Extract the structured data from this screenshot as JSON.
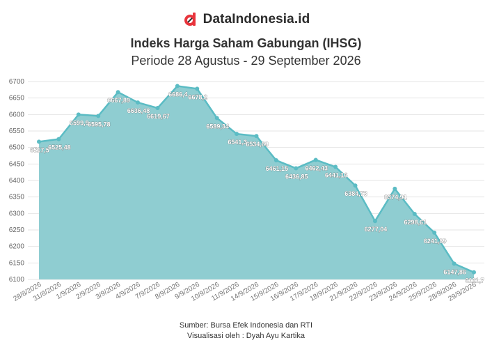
{
  "brand": {
    "name": "DataIndonesia.id",
    "logo_icon": "data-indonesia-logo-icon",
    "accent": "#e8343c"
  },
  "chart_data": {
    "type": "area",
    "title": "Indeks Harga Saham Gabungan (IHSG)",
    "subtitle": "Periode 28 Agustus - 29 September 2026",
    "categories": [
      "28/8/2026",
      "31/8/2026",
      "1/9/2026",
      "2/9/2026",
      "3/9/2026",
      "4/9/2026",
      "7/9/2026",
      "8/9/2026",
      "9/9/2026",
      "10/9/2026",
      "11/9/2026",
      "14/9/2026",
      "15/9/2026",
      "16/9/2026",
      "17/9/2026",
      "18/9/2026",
      "21/9/2026",
      "22/9/2026",
      "23/9/2026",
      "24/9/2026",
      "25/9/2026",
      "28/9/2026",
      "29/9/2026"
    ],
    "values": [
      6517.5,
      6525.48,
      6599.9,
      6595.78,
      6667.89,
      6636.48,
      6619.67,
      6686.4,
      6678.2,
      6589.34,
      6541.3,
      6534.69,
      6461.15,
      6436.85,
      6462.43,
      6441.16,
      6384.73,
      6277.04,
      6374.91,
      6298.61,
      6241.89,
      6147.86,
      6121.7
    ],
    "data_labels": [
      "6517,5",
      "6525,48",
      "6599,9",
      "6595,78",
      "6667,89",
      "6636,48",
      "6619,67",
      "6686,4",
      "6678,2",
      "6589,34",
      "6541,3",
      "6534,69",
      "6461,15",
      "6436,85",
      "6462,43",
      "6441,16",
      "6384,73",
      "6277,04",
      "6374,91",
      "6298,61",
      "6241,89",
      "6147,86",
      "6121,7"
    ],
    "yticks": [
      "6700",
      "6650",
      "6600",
      "6550",
      "6500",
      "6450",
      "6400",
      "6350",
      "6300",
      "6250",
      "6200",
      "6150",
      "6100"
    ],
    "ylim": [
      6100,
      6700
    ],
    "grid": true,
    "legend": "none",
    "colors": {
      "fill": "#8fcdd1",
      "line": "#5bbcc4",
      "marker": "#5bbcc4"
    }
  },
  "footer": {
    "source": "Sumber: Bursa Efek Indonesia dan RTI",
    "credit": "Visualisasi oleh : Dyah Ayu Kartika"
  }
}
